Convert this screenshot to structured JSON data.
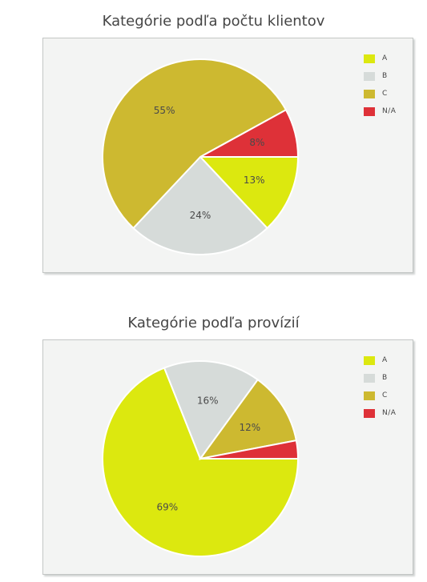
{
  "colors": {
    "A": "#dce80f",
    "B": "#d6dbd9",
    "C": "#cdb930",
    "N/A": "#de3138"
  },
  "chart_data": [
    {
      "type": "pie",
      "title": "Kategórie podľa počtu klientov",
      "legend": [
        "A",
        "B",
        "C",
        "N/A"
      ],
      "legend_position": "top-right",
      "slices": [
        {
          "name": "A",
          "value": 13,
          "label": "13%"
        },
        {
          "name": "B",
          "value": 24,
          "label": "24%"
        },
        {
          "name": "C",
          "value": 55,
          "label": "55%"
        },
        {
          "name": "N/A",
          "value": 8,
          "label": "8%"
        }
      ]
    },
    {
      "type": "pie",
      "title": "Kategórie podľa provízií",
      "legend": [
        "A",
        "B",
        "C",
        "N/A"
      ],
      "legend_position": "top-right",
      "slices": [
        {
          "name": "A",
          "value": 69,
          "label": "69%"
        },
        {
          "name": "B",
          "value": 16,
          "label": "16%"
        },
        {
          "name": "C",
          "value": 12,
          "label": "12%"
        },
        {
          "name": "N/A",
          "value": 3,
          "label": ""
        }
      ]
    }
  ]
}
